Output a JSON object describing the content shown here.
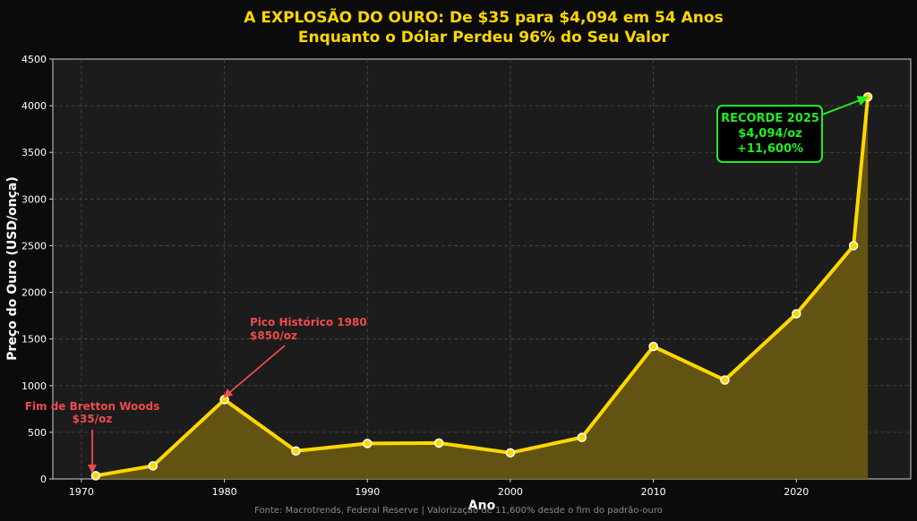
{
  "colors": {
    "background": "#0b0b0b",
    "plot_background": "#1c1c1c",
    "line": "#ffd700",
    "area": "#6b5a12",
    "grid": "#4a4a4a",
    "annotation_red": "#ef4b4b",
    "annotation_green": "#22ee22"
  },
  "chart_data": {
    "type": "area",
    "title_line1": "A EXPLOSÃO DO OURO: De $35 para $4,094 em 54 Anos",
    "title_line2": "Enquanto o Dólar Perdeu 96% do Seu Valor",
    "xlabel": "Ano",
    "ylabel": "Preço do Ouro (USD/onça)",
    "xlim": [
      1968,
      2028
    ],
    "ylim": [
      0,
      4500
    ],
    "xticks": [
      1970,
      1980,
      1990,
      2000,
      2010,
      2020
    ],
    "yticks": [
      0,
      500,
      1000,
      1500,
      2000,
      2500,
      3000,
      3500,
      4000,
      4500
    ],
    "grid": true,
    "series": [
      {
        "x": [
          1971,
          1975,
          1980,
          1985,
          1990,
          1995,
          2000,
          2005,
          2010,
          2015,
          2020,
          2024,
          2025
        ],
        "values": [
          35,
          140,
          850,
          300,
          380,
          385,
          280,
          445,
          1420,
          1060,
          1770,
          2500,
          4094
        ]
      }
    ],
    "annotations": {
      "bretton_woods_line1": "Fim de Bretton Woods",
      "bretton_woods_line2": "$35/oz",
      "peak_1980_line1": "Pico Histórico 1980",
      "peak_1980_line2": "$850/oz",
      "record_line1": "RECORDE 2025",
      "record_line2": "$4,094/oz",
      "record_line3": "+11,600%"
    },
    "source": "Fonte: Macrotrends, Federal Reserve | Valorização de 11,600% desde o fim do padrão-ouro"
  }
}
